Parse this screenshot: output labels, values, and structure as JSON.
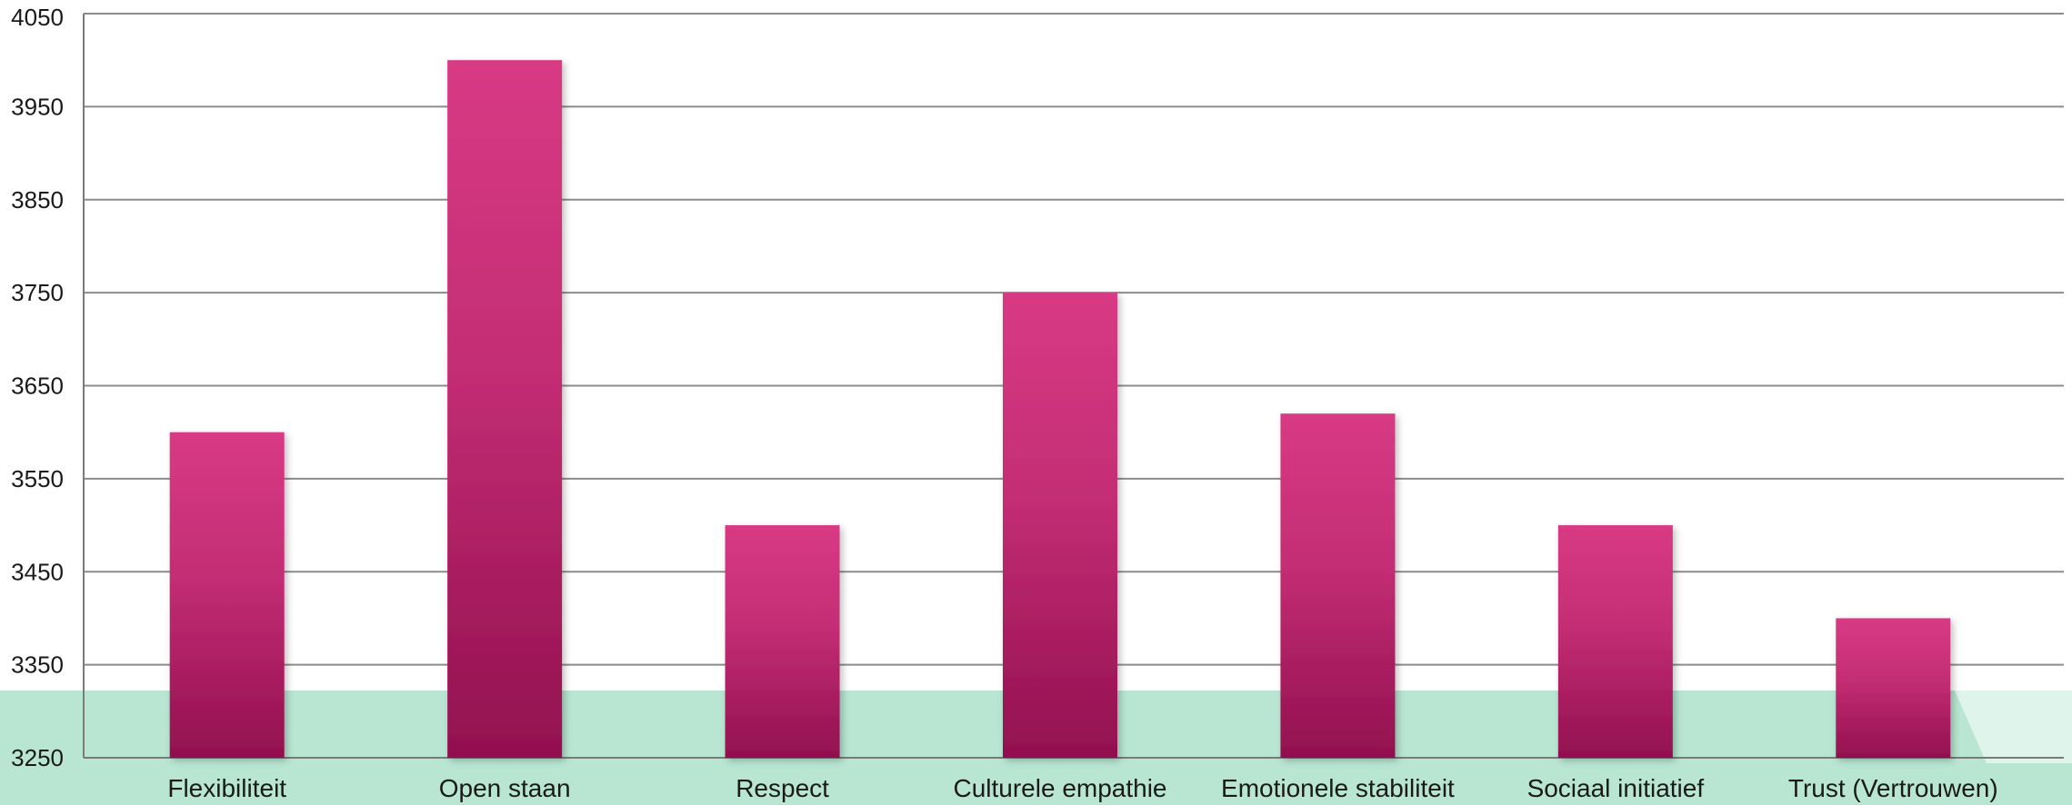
{
  "chart_data": {
    "type": "bar",
    "categories": [
      "Flexibiliteit",
      "Open staan",
      "Respect",
      "Culturele empathie",
      "Emotionele stabiliteit",
      "Sociaal initiatief",
      "Trust (Vertrouwen)"
    ],
    "values": [
      3600,
      4000,
      3500,
      3750,
      3620,
      3500,
      3400
    ],
    "ylim": [
      3250,
      4050
    ],
    "yticks": [
      3250,
      3350,
      3450,
      3550,
      3650,
      3750,
      3850,
      3950,
      4050
    ],
    "grid": true,
    "legend": "none",
    "title": "",
    "xlabel": "",
    "ylabel": ""
  },
  "colors": {
    "bar_top": "#d83a84",
    "bar_bottom": "#92104f",
    "gridline": "#8c8c8c",
    "background_band": "#b8e6d2"
  }
}
